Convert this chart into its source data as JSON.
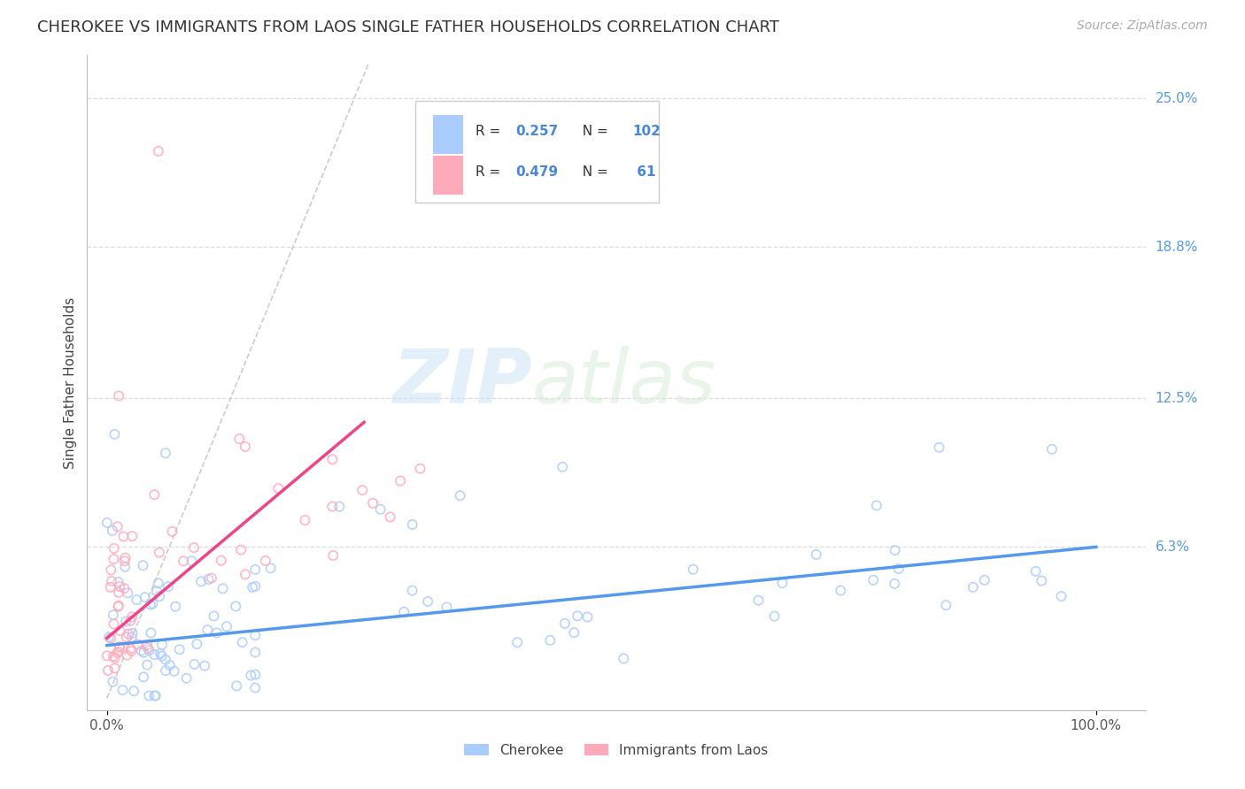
{
  "title": "CHEROKEE VS IMMIGRANTS FROM LAOS SINGLE FATHER HOUSEHOLDS CORRELATION CHART",
  "source_text": "Source: ZipAtlas.com",
  "watermark_left": "ZIP",
  "watermark_right": "atlas",
  "ylabel": "Single Father Households",
  "legend_r1": "0.257",
  "legend_n1": "102",
  "legend_r2": "0.479",
  "legend_n2": "61",
  "legend_label1": "Cherokee",
  "legend_label2": "Immigrants from Laos",
  "color_cherokee": "#aaccff",
  "color_laos": "#ffaabb",
  "color_trend_cherokee": "#5599ee",
  "color_trend_laos": "#ee4488",
  "color_diagonal": "#cccccc",
  "right_ytick_labels": [
    "25.0%",
    "18.8%",
    "12.5%",
    "6.3%"
  ],
  "right_ytick_values": [
    0.25,
    0.188,
    0.125,
    0.063
  ],
  "xlim_min": -0.02,
  "xlim_max": 1.05,
  "ylim_min": -0.005,
  "ylim_max": 0.268,
  "title_fontsize": 13,
  "source_fontsize": 10
}
